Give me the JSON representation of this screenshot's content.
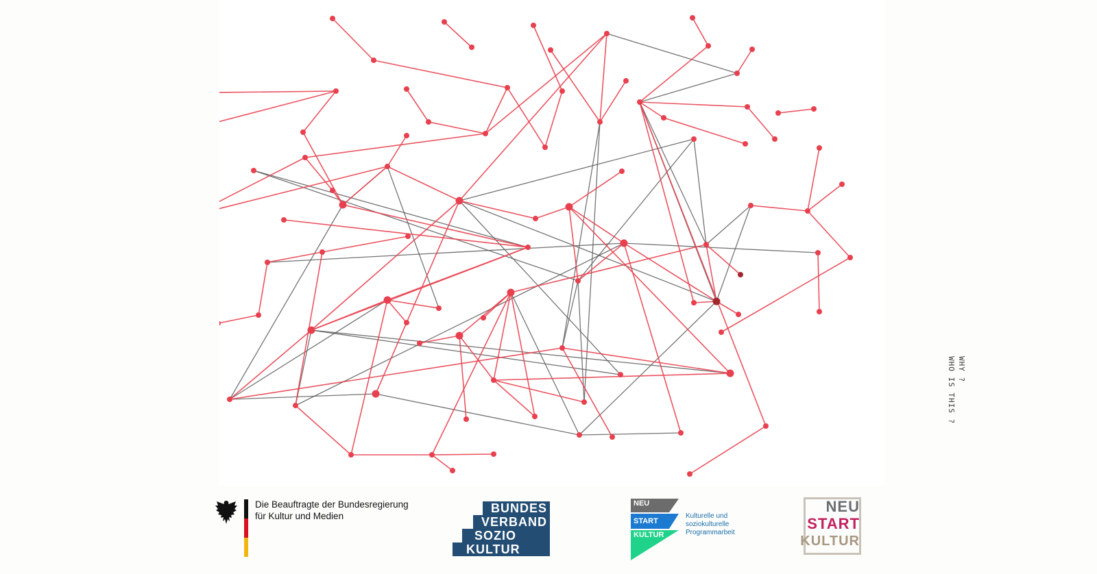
{
  "drawing": {
    "note_line1": "WHY ?",
    "note_line2": "WHO IS THIS ?",
    "red_color": "#e8404e",
    "dark_color": "#5a5a5a"
  },
  "logos": {
    "bkm": {
      "line1": "Die Beauftragte der Bundesregierung",
      "line2": "für Kultur und Medien",
      "icon": "federal-eagle-icon"
    },
    "bundesverband": {
      "row1": "BUNDES",
      "row2": "VERBAND",
      "row3": "SOZIO",
      "row4": "KULTUR",
      "color": "#234d73"
    },
    "neustart_soziokultur": {
      "neu": "NEU",
      "start": "START",
      "kultur": "KULTUR",
      "desc1": "Kulturelle und",
      "desc2": "soziokulturelle",
      "desc3": "Programmarbeit"
    },
    "neustart_kultur": {
      "neu": "NEU",
      "start": "START",
      "kultur": "KULTUR"
    }
  }
}
